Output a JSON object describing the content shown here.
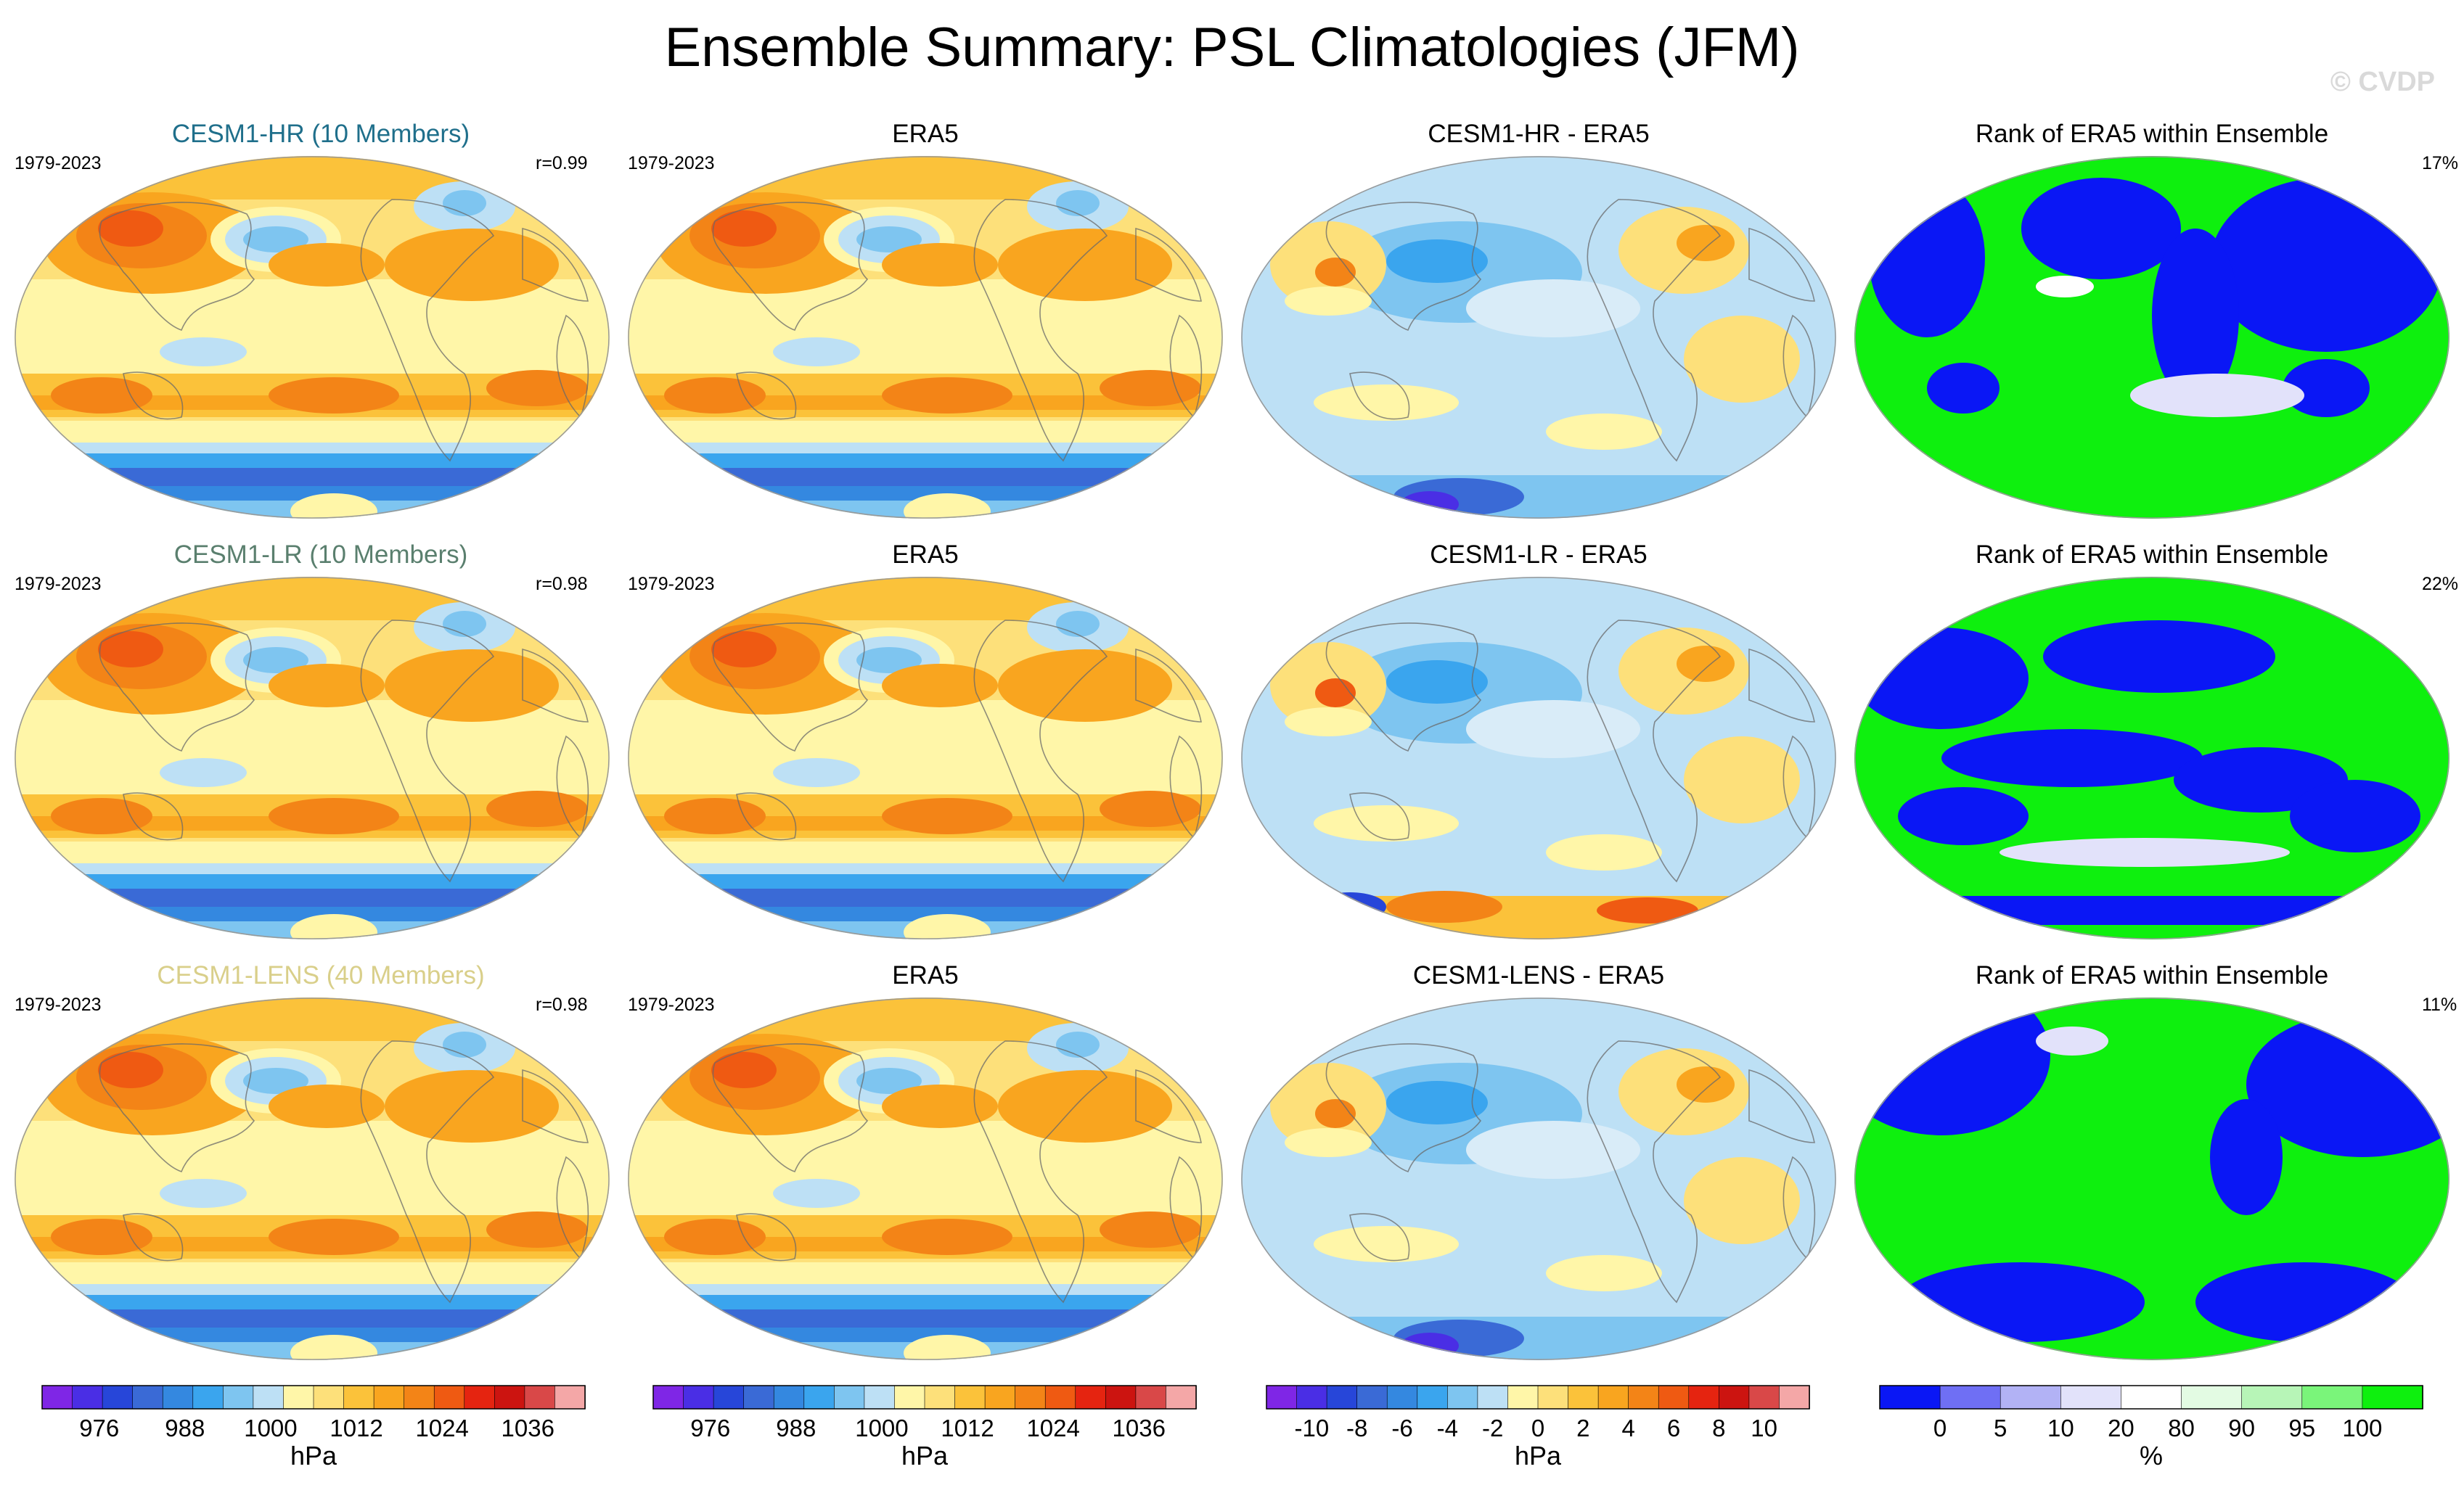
{
  "title": "Ensemble Summary: PSL Climatologies (JFM)",
  "watermark": "© CVDP",
  "colors": {
    "psl": [
      "#7f26e6",
      "#4a2ee5",
      "#2746d9",
      "#3a6ad6",
      "#3488e0",
      "#3aa5ee",
      "#7ec5f0",
      "#bde0f5",
      "#fff6a8",
      "#fde07a",
      "#fbc23a",
      "#f9a51f",
      "#f38417",
      "#ef5a12",
      "#e52410",
      "#cc1410",
      "#d94848",
      "#f4a7a7"
    ],
    "diff": [
      "#7f26e6",
      "#4a2ee5",
      "#2746d9",
      "#3a6ad6",
      "#3488e0",
      "#3aa5ee",
      "#7ec5f0",
      "#bde0f5",
      "#fff6a8",
      "#fde07a",
      "#fbc23a",
      "#f9a51f",
      "#f38417",
      "#ef5a12",
      "#e52410",
      "#cc1410",
      "#d94848",
      "#f4a7a7"
    ],
    "rank": [
      "#0a17f5",
      "#6f6ff4",
      "#b2b2f5",
      "#e2e2fa",
      "#ffffff",
      "#e3fbe3",
      "#b7f5b7",
      "#7af57a",
      "#0ef00e"
    ]
  },
  "rows": [
    {
      "model_title": "CESM1-HR (10 Members)",
      "model_color": "#1f6f8b",
      "model_years": "1979-2023",
      "model_r": "r=0.99",
      "obs_title": "ERA5",
      "obs_years": "1979-2023",
      "diff_title": "CESM1-HR - ERA5",
      "rank_title": "Rank of ERA5 within Ensemble",
      "rank_pct": "17%"
    },
    {
      "model_title": "CESM1-LR (10 Members)",
      "model_color": "#5a7f6e",
      "model_years": "1979-2023",
      "model_r": "r=0.98",
      "obs_title": "ERA5",
      "obs_years": "1979-2023",
      "diff_title": "CESM1-LR - ERA5",
      "rank_title": "Rank of ERA5 within Ensemble",
      "rank_pct": "22%"
    },
    {
      "model_title": "CESM1-LENS (40 Members)",
      "model_color": "#d9cf8a",
      "model_years": "1979-2023",
      "model_r": "r=0.98",
      "obs_title": "ERA5",
      "obs_years": "1979-2023",
      "diff_title": "CESM1-LENS - ERA5",
      "rank_title": "Rank of ERA5 within Ensemble",
      "rank_pct": "11%"
    }
  ],
  "chart_data": [
    {
      "type": "heatmap",
      "title": "PSL climatology colorbar",
      "units": "hPa",
      "tick_labels": [
        "976",
        "988",
        "1000",
        "1012",
        "1024",
        "1036"
      ],
      "tick_values": [
        976,
        988,
        1000,
        1012,
        1024,
        1036
      ],
      "range": [
        968,
        1044
      ]
    },
    {
      "type": "heatmap",
      "title": "PSL climatology colorbar",
      "units": "hPa",
      "tick_labels": [
        "976",
        "988",
        "1000",
        "1012",
        "1024",
        "1036"
      ],
      "tick_values": [
        976,
        988,
        1000,
        1012,
        1024,
        1036
      ],
      "range": [
        968,
        1044
      ]
    },
    {
      "type": "heatmap",
      "title": "Difference colorbar",
      "units": "hPa",
      "tick_labels": [
        "-10",
        "-8",
        "-6",
        "-4",
        "-2",
        "0",
        "2",
        "4",
        "6",
        "8",
        "10"
      ],
      "tick_values": [
        -10,
        -8,
        -6,
        -4,
        -2,
        0,
        2,
        4,
        6,
        8,
        10
      ],
      "range": [
        -12,
        12
      ]
    },
    {
      "type": "heatmap",
      "title": "Rank colorbar",
      "units": "%",
      "tick_labels": [
        "0",
        "5",
        "10",
        "20",
        "80",
        "90",
        "95",
        "100"
      ],
      "bin_edges": [
        0,
        5,
        10,
        20,
        80,
        90,
        95,
        100
      ]
    }
  ]
}
